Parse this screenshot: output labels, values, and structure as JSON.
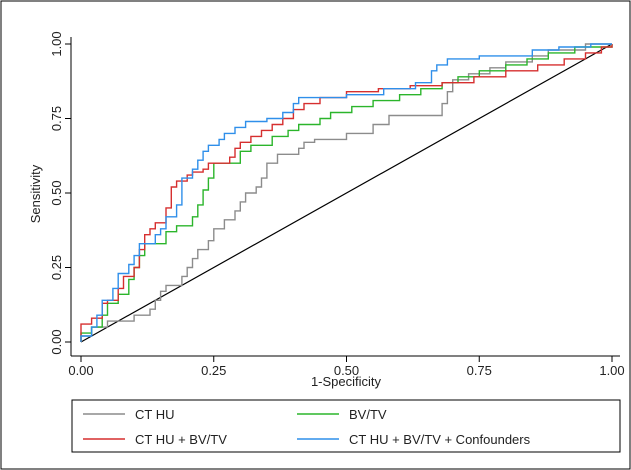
{
  "chart_data": {
    "type": "line",
    "title": "",
    "xlabel": "1-Specificity",
    "ylabel": "Sensitivity",
    "xlim": [
      0,
      1
    ],
    "ylim": [
      0,
      1
    ],
    "x_ticks": [
      "0.00",
      "0.25",
      "0.50",
      "0.75",
      "1.00"
    ],
    "y_ticks": [
      "0.00",
      "0.25",
      "0.50",
      "0.75",
      "1.00"
    ],
    "grid": false,
    "legend_position": "bottom",
    "reference_line": {
      "color": "#000000",
      "points": [
        [
          0,
          0
        ],
        [
          1,
          1
        ]
      ]
    },
    "series": [
      {
        "name": "CT HU",
        "color": "#8c8c8c",
        "points": [
          [
            0,
            0
          ],
          [
            0,
            0.02
          ],
          [
            0.02,
            0.02
          ],
          [
            0.02,
            0.05
          ],
          [
            0.05,
            0.05
          ],
          [
            0.05,
            0.07
          ],
          [
            0.1,
            0.07
          ],
          [
            0.1,
            0.09
          ],
          [
            0.13,
            0.09
          ],
          [
            0.13,
            0.11
          ],
          [
            0.14,
            0.11
          ],
          [
            0.14,
            0.14
          ],
          [
            0.15,
            0.14
          ],
          [
            0.15,
            0.17
          ],
          [
            0.16,
            0.17
          ],
          [
            0.16,
            0.19
          ],
          [
            0.19,
            0.19
          ],
          [
            0.19,
            0.22
          ],
          [
            0.2,
            0.22
          ],
          [
            0.2,
            0.25
          ],
          [
            0.21,
            0.25
          ],
          [
            0.21,
            0.28
          ],
          [
            0.22,
            0.28
          ],
          [
            0.22,
            0.31
          ],
          [
            0.24,
            0.31
          ],
          [
            0.24,
            0.34
          ],
          [
            0.25,
            0.34
          ],
          [
            0.25,
            0.38
          ],
          [
            0.27,
            0.38
          ],
          [
            0.27,
            0.41
          ],
          [
            0.29,
            0.41
          ],
          [
            0.29,
            0.44
          ],
          [
            0.3,
            0.44
          ],
          [
            0.3,
            0.47
          ],
          [
            0.31,
            0.47
          ],
          [
            0.31,
            0.5
          ],
          [
            0.33,
            0.5
          ],
          [
            0.33,
            0.52
          ],
          [
            0.34,
            0.52
          ],
          [
            0.34,
            0.55
          ],
          [
            0.35,
            0.55
          ],
          [
            0.35,
            0.6
          ],
          [
            0.37,
            0.6
          ],
          [
            0.37,
            0.63
          ],
          [
            0.41,
            0.63
          ],
          [
            0.41,
            0.65
          ],
          [
            0.42,
            0.65
          ],
          [
            0.42,
            0.67
          ],
          [
            0.44,
            0.67
          ],
          [
            0.44,
            0.68
          ],
          [
            0.5,
            0.68
          ],
          [
            0.5,
            0.7
          ],
          [
            0.55,
            0.7
          ],
          [
            0.55,
            0.73
          ],
          [
            0.58,
            0.73
          ],
          [
            0.58,
            0.76
          ],
          [
            0.68,
            0.76
          ],
          [
            0.68,
            0.8
          ],
          [
            0.69,
            0.8
          ],
          [
            0.69,
            0.84
          ],
          [
            0.7,
            0.84
          ],
          [
            0.7,
            0.88
          ],
          [
            0.73,
            0.88
          ],
          [
            0.73,
            0.9
          ],
          [
            0.77,
            0.9
          ],
          [
            0.77,
            0.92
          ],
          [
            0.8,
            0.92
          ],
          [
            0.8,
            0.94
          ],
          [
            0.85,
            0.94
          ],
          [
            0.85,
            0.96
          ],
          [
            0.88,
            0.96
          ],
          [
            0.88,
            0.98
          ],
          [
            0.95,
            0.98
          ],
          [
            0.95,
            1.0
          ],
          [
            1,
            1
          ]
        ]
      },
      {
        "name": "BV/TV",
        "color": "#2bb52b",
        "points": [
          [
            0,
            0
          ],
          [
            0,
            0.03
          ],
          [
            0.02,
            0.03
          ],
          [
            0.02,
            0.05
          ],
          [
            0.04,
            0.05
          ],
          [
            0.04,
            0.09
          ],
          [
            0.05,
            0.09
          ],
          [
            0.05,
            0.13
          ],
          [
            0.07,
            0.13
          ],
          [
            0.07,
            0.16
          ],
          [
            0.09,
            0.16
          ],
          [
            0.09,
            0.21
          ],
          [
            0.1,
            0.21
          ],
          [
            0.1,
            0.25
          ],
          [
            0.11,
            0.25
          ],
          [
            0.11,
            0.29
          ],
          [
            0.12,
            0.29
          ],
          [
            0.12,
            0.33
          ],
          [
            0.16,
            0.33
          ],
          [
            0.16,
            0.37
          ],
          [
            0.18,
            0.37
          ],
          [
            0.18,
            0.39
          ],
          [
            0.21,
            0.39
          ],
          [
            0.21,
            0.42
          ],
          [
            0.22,
            0.42
          ],
          [
            0.22,
            0.46
          ],
          [
            0.23,
            0.46
          ],
          [
            0.23,
            0.51
          ],
          [
            0.24,
            0.51
          ],
          [
            0.24,
            0.55
          ],
          [
            0.25,
            0.55
          ],
          [
            0.25,
            0.6
          ],
          [
            0.3,
            0.6
          ],
          [
            0.3,
            0.64
          ],
          [
            0.32,
            0.64
          ],
          [
            0.32,
            0.66
          ],
          [
            0.36,
            0.66
          ],
          [
            0.36,
            0.69
          ],
          [
            0.39,
            0.69
          ],
          [
            0.39,
            0.71
          ],
          [
            0.41,
            0.71
          ],
          [
            0.41,
            0.73
          ],
          [
            0.45,
            0.73
          ],
          [
            0.45,
            0.75
          ],
          [
            0.47,
            0.75
          ],
          [
            0.47,
            0.77
          ],
          [
            0.51,
            0.77
          ],
          [
            0.51,
            0.79
          ],
          [
            0.55,
            0.79
          ],
          [
            0.55,
            0.81
          ],
          [
            0.6,
            0.81
          ],
          [
            0.6,
            0.83
          ],
          [
            0.64,
            0.83
          ],
          [
            0.64,
            0.85
          ],
          [
            0.68,
            0.85
          ],
          [
            0.68,
            0.87
          ],
          [
            0.71,
            0.87
          ],
          [
            0.71,
            0.89
          ],
          [
            0.75,
            0.89
          ],
          [
            0.75,
            0.91
          ],
          [
            0.8,
            0.91
          ],
          [
            0.8,
            0.93
          ],
          [
            0.84,
            0.93
          ],
          [
            0.84,
            0.95
          ],
          [
            0.88,
            0.95
          ],
          [
            0.88,
            0.97
          ],
          [
            0.93,
            0.97
          ],
          [
            0.93,
            0.99
          ],
          [
            1,
            0.99
          ],
          [
            1,
            1
          ]
        ]
      },
      {
        "name": "CT HU + BV/TV",
        "color": "#d62f2f",
        "points": [
          [
            0,
            0
          ],
          [
            0,
            0.06
          ],
          [
            0.02,
            0.06
          ],
          [
            0.02,
            0.08
          ],
          [
            0.04,
            0.08
          ],
          [
            0.04,
            0.13
          ],
          [
            0.05,
            0.13
          ],
          [
            0.05,
            0.14
          ],
          [
            0.07,
            0.14
          ],
          [
            0.07,
            0.18
          ],
          [
            0.08,
            0.18
          ],
          [
            0.08,
            0.22
          ],
          [
            0.1,
            0.22
          ],
          [
            0.1,
            0.25
          ],
          [
            0.11,
            0.25
          ],
          [
            0.11,
            0.31
          ],
          [
            0.12,
            0.31
          ],
          [
            0.12,
            0.36
          ],
          [
            0.13,
            0.36
          ],
          [
            0.13,
            0.38
          ],
          [
            0.14,
            0.38
          ],
          [
            0.14,
            0.4
          ],
          [
            0.16,
            0.4
          ],
          [
            0.16,
            0.45
          ],
          [
            0.17,
            0.45
          ],
          [
            0.17,
            0.52
          ],
          [
            0.18,
            0.52
          ],
          [
            0.18,
            0.54
          ],
          [
            0.2,
            0.54
          ],
          [
            0.2,
            0.56
          ],
          [
            0.21,
            0.56
          ],
          [
            0.21,
            0.57
          ],
          [
            0.23,
            0.57
          ],
          [
            0.23,
            0.58
          ],
          [
            0.24,
            0.58
          ],
          [
            0.24,
            0.6
          ],
          [
            0.28,
            0.6
          ],
          [
            0.28,
            0.62
          ],
          [
            0.29,
            0.62
          ],
          [
            0.29,
            0.65
          ],
          [
            0.3,
            0.65
          ],
          [
            0.3,
            0.67
          ],
          [
            0.32,
            0.67
          ],
          [
            0.32,
            0.69
          ],
          [
            0.34,
            0.69
          ],
          [
            0.34,
            0.71
          ],
          [
            0.36,
            0.71
          ],
          [
            0.36,
            0.73
          ],
          [
            0.38,
            0.73
          ],
          [
            0.38,
            0.75
          ],
          [
            0.4,
            0.75
          ],
          [
            0.4,
            0.78
          ],
          [
            0.42,
            0.78
          ],
          [
            0.42,
            0.8
          ],
          [
            0.45,
            0.8
          ],
          [
            0.45,
            0.82
          ],
          [
            0.5,
            0.82
          ],
          [
            0.5,
            0.84
          ],
          [
            0.56,
            0.84
          ],
          [
            0.56,
            0.85
          ],
          [
            0.62,
            0.85
          ],
          [
            0.62,
            0.86
          ],
          [
            0.68,
            0.86
          ],
          [
            0.68,
            0.87
          ],
          [
            0.74,
            0.87
          ],
          [
            0.74,
            0.89
          ],
          [
            0.8,
            0.89
          ],
          [
            0.8,
            0.91
          ],
          [
            0.86,
            0.91
          ],
          [
            0.86,
            0.93
          ],
          [
            0.91,
            0.93
          ],
          [
            0.91,
            0.95
          ],
          [
            0.95,
            0.95
          ],
          [
            0.95,
            0.97
          ],
          [
            0.98,
            0.97
          ],
          [
            0.98,
            0.99
          ],
          [
            1,
            0.99
          ],
          [
            1,
            1
          ]
        ]
      },
      {
        "name": "CT HU + BV/TV + Confounders",
        "color": "#2f8fea",
        "points": [
          [
            0,
            0
          ],
          [
            0,
            0.02
          ],
          [
            0.02,
            0.02
          ],
          [
            0.02,
            0.05
          ],
          [
            0.03,
            0.05
          ],
          [
            0.03,
            0.09
          ],
          [
            0.04,
            0.09
          ],
          [
            0.04,
            0.14
          ],
          [
            0.06,
            0.14
          ],
          [
            0.06,
            0.18
          ],
          [
            0.07,
            0.18
          ],
          [
            0.07,
            0.23
          ],
          [
            0.09,
            0.23
          ],
          [
            0.09,
            0.26
          ],
          [
            0.1,
            0.26
          ],
          [
            0.1,
            0.29
          ],
          [
            0.11,
            0.29
          ],
          [
            0.11,
            0.33
          ],
          [
            0.14,
            0.33
          ],
          [
            0.14,
            0.36
          ],
          [
            0.15,
            0.36
          ],
          [
            0.15,
            0.38
          ],
          [
            0.16,
            0.38
          ],
          [
            0.16,
            0.42
          ],
          [
            0.18,
            0.42
          ],
          [
            0.18,
            0.46
          ],
          [
            0.19,
            0.46
          ],
          [
            0.19,
            0.55
          ],
          [
            0.21,
            0.55
          ],
          [
            0.21,
            0.58
          ],
          [
            0.22,
            0.58
          ],
          [
            0.22,
            0.61
          ],
          [
            0.23,
            0.61
          ],
          [
            0.23,
            0.64
          ],
          [
            0.24,
            0.64
          ],
          [
            0.24,
            0.66
          ],
          [
            0.26,
            0.66
          ],
          [
            0.26,
            0.68
          ],
          [
            0.27,
            0.68
          ],
          [
            0.27,
            0.7
          ],
          [
            0.29,
            0.7
          ],
          [
            0.29,
            0.72
          ],
          [
            0.31,
            0.72
          ],
          [
            0.31,
            0.74
          ],
          [
            0.35,
            0.74
          ],
          [
            0.35,
            0.75
          ],
          [
            0.38,
            0.75
          ],
          [
            0.38,
            0.77
          ],
          [
            0.4,
            0.77
          ],
          [
            0.4,
            0.8
          ],
          [
            0.41,
            0.8
          ],
          [
            0.41,
            0.82
          ],
          [
            0.5,
            0.82
          ],
          [
            0.5,
            0.83
          ],
          [
            0.57,
            0.83
          ],
          [
            0.57,
            0.85
          ],
          [
            0.63,
            0.85
          ],
          [
            0.63,
            0.87
          ],
          [
            0.66,
            0.87
          ],
          [
            0.66,
            0.91
          ],
          [
            0.67,
            0.91
          ],
          [
            0.67,
            0.93
          ],
          [
            0.69,
            0.93
          ],
          [
            0.69,
            0.95
          ],
          [
            0.75,
            0.95
          ],
          [
            0.75,
            0.96
          ],
          [
            0.85,
            0.96
          ],
          [
            0.85,
            0.98
          ],
          [
            0.9,
            0.98
          ],
          [
            0.9,
            0.99
          ],
          [
            0.96,
            0.99
          ],
          [
            0.96,
            1.0
          ],
          [
            1,
            1
          ]
        ]
      }
    ]
  }
}
